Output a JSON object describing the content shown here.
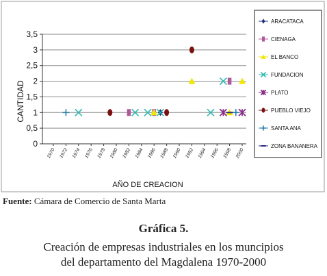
{
  "chart_data": {
    "type": "scatter",
    "title": "",
    "xlabel": "AÑO DE CREACION",
    "ylabel": "CANTIDAD",
    "ylim": [
      0,
      3.5
    ],
    "y_ticks": [
      "0",
      "0,5",
      "1",
      "1,5",
      "2",
      "2,5",
      "3",
      "3,5"
    ],
    "x_ticks": [
      "1970",
      "1972",
      "1974",
      "1976",
      "1978",
      "1980",
      "1982",
      "1984",
      "1986",
      "1988",
      "1990",
      "1992",
      "1994",
      "1996",
      "1998",
      "2000"
    ],
    "xlim": [
      1970,
      2000
    ],
    "grid": "horizontal",
    "legend_position": "right",
    "series": [
      {
        "name": "ARACATACA",
        "marker": "diamond",
        "color": "#1f2f7a",
        "points": [
          [
            1987,
            1
          ]
        ]
      },
      {
        "name": "CIENAGA",
        "marker": "square",
        "color": "#b0569a",
        "points": [
          [
            1982,
            1
          ],
          [
            1986,
            1
          ],
          [
            1998,
            2
          ]
        ]
      },
      {
        "name": "EL BANCO",
        "marker": "triangle",
        "color": "#f0e800",
        "points": [
          [
            1986,
            1
          ],
          [
            1992,
            2
          ],
          [
            1998,
            1
          ],
          [
            2000,
            2
          ]
        ]
      },
      {
        "name": "FUNDACION",
        "marker": "x",
        "color": "#2fb9b0",
        "points": [
          [
            1974,
            1
          ],
          [
            1983,
            1
          ],
          [
            1985,
            1
          ],
          [
            1987,
            1
          ],
          [
            1995,
            1
          ],
          [
            1997,
            2
          ]
        ]
      },
      {
        "name": "PLATO",
        "marker": "star",
        "color": "#8b2b8c",
        "points": [
          [
            1997,
            1
          ],
          [
            2000,
            1
          ]
        ]
      },
      {
        "name": "PUEBLO VIEJO",
        "marker": "circle",
        "color": "#7a1010",
        "points": [
          [
            1979,
            1
          ],
          [
            1988,
            1
          ],
          [
            1992,
            3
          ]
        ]
      },
      {
        "name": "SANTA ANA",
        "marker": "plus",
        "color": "#2b7fa8",
        "points": [
          [
            1972,
            1
          ],
          [
            1999,
            1
          ]
        ]
      },
      {
        "name": "ZONA BANANERA",
        "marker": "dash",
        "color": "#2a2a7a",
        "points": [
          [
            1998,
            1
          ]
        ]
      }
    ]
  },
  "source": {
    "label": "Fuente:",
    "text": "Cámara de Comercio de Santa Marta"
  },
  "caption": {
    "number": "Gráfica 5.",
    "line1": "Creación de empresas industriales en los muncipios",
    "line2": "del departamento del Magdalena 1970-2000"
  }
}
